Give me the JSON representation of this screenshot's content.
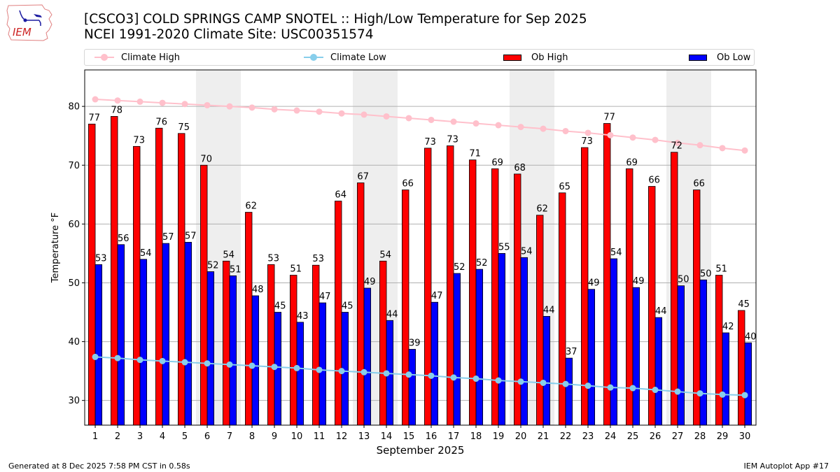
{
  "header": {
    "logo_text": "IEM",
    "title_line1": "[CSCO3] COLD SPRINGS CAMP SNOTEL :: High/Low Temperature for Sep 2025",
    "title_line2": "NCEI 1991-2020 Climate Site: USC00351574"
  },
  "legend": {
    "items": [
      {
        "label": "Climate High",
        "kind": "line",
        "color": "#ffc0cb"
      },
      {
        "label": "Climate Low",
        "kind": "line",
        "color": "#87ceeb"
      },
      {
        "label": "Ob High",
        "kind": "bar",
        "color": "#ff0000"
      },
      {
        "label": "Ob Low",
        "kind": "bar",
        "color": "#0000ff"
      }
    ]
  },
  "footer": {
    "generated": "Generated at 8 Dec 2025 7:58 PM CST in 0.58s",
    "app": "IEM Autoplot App #17"
  },
  "chart_data": {
    "type": "bar",
    "title": "[CSCO3] COLD SPRINGS CAMP SNOTEL :: High/Low Temperature for Sep 2025",
    "subtitle": "NCEI 1991-2020 Climate Site: USC00351574",
    "xlabel": "September 2025",
    "ylabel": "Temperature °F",
    "x": [
      1,
      2,
      3,
      4,
      5,
      6,
      7,
      8,
      9,
      10,
      11,
      12,
      13,
      14,
      15,
      16,
      17,
      18,
      19,
      20,
      21,
      22,
      23,
      24,
      25,
      26,
      27,
      28,
      29,
      30
    ],
    "xlim": [
      0.53,
      30.5
    ],
    "ylim": [
      25.8,
      86.2
    ],
    "yticks": [
      30,
      40,
      50,
      60,
      70,
      80
    ],
    "grid": "y",
    "legend_position": "top",
    "weekend_shading": [
      [
        6,
        7
      ],
      [
        13,
        14
      ],
      [
        20,
        21
      ],
      [
        27,
        28
      ]
    ],
    "shade_color": "#eeeeee",
    "series": [
      {
        "name": "Ob High",
        "kind": "bar",
        "color": "#ff0000",
        "values": [
          77.0,
          78.3,
          73.2,
          76.3,
          75.4,
          70.0,
          53.7,
          62.0,
          53.1,
          51.3,
          53.0,
          63.9,
          67.0,
          53.7,
          65.8,
          72.9,
          73.3,
          70.9,
          69.4,
          68.5,
          61.5,
          65.3,
          73.0,
          77.1,
          69.4,
          66.4,
          72.2,
          65.8,
          51.3,
          45.3
        ],
        "labels": [
          "77",
          "78",
          "73",
          "76",
          "75",
          "70",
          "54",
          "62",
          "53",
          "51",
          "53",
          "64",
          "67",
          "54",
          "66",
          "73",
          "73",
          "71",
          "69",
          "68",
          "62",
          "65",
          "73",
          "77",
          "69",
          "66",
          "72",
          "66",
          "51",
          "45"
        ]
      },
      {
        "name": "Ob Low",
        "kind": "bar",
        "color": "#0000ff",
        "values": [
          53.1,
          56.5,
          54.0,
          56.7,
          56.9,
          51.9,
          51.2,
          47.8,
          45.0,
          43.3,
          46.6,
          45.0,
          49.1,
          43.6,
          38.7,
          46.7,
          51.6,
          52.3,
          55.0,
          54.3,
          44.3,
          37.2,
          48.9,
          54.1,
          49.2,
          44.1,
          49.5,
          50.5,
          41.5,
          39.8
        ],
        "labels": [
          "53",
          "56",
          "54",
          "57",
          "57",
          "52",
          "51",
          "48",
          "45",
          "43",
          "47",
          "45",
          "49",
          "44",
          "39",
          "47",
          "52",
          "52",
          "55",
          "54",
          "44",
          "37",
          "49",
          "54",
          "49",
          "44",
          "50",
          "50",
          "42",
          "40"
        ]
      },
      {
        "name": "Climate High",
        "kind": "line",
        "color": "#ffc0cb",
        "values": [
          81.2,
          81.0,
          80.8,
          80.6,
          80.4,
          80.2,
          80.0,
          79.8,
          79.5,
          79.3,
          79.1,
          78.8,
          78.6,
          78.3,
          78.0,
          77.7,
          77.4,
          77.1,
          76.8,
          76.5,
          76.2,
          75.8,
          75.5,
          75.1,
          74.7,
          74.3,
          73.8,
          73.4,
          72.9,
          72.5
        ]
      },
      {
        "name": "Climate Low",
        "kind": "line",
        "color": "#87ceeb",
        "values": [
          37.4,
          37.2,
          36.9,
          36.7,
          36.5,
          36.3,
          36.1,
          35.9,
          35.7,
          35.5,
          35.2,
          35.0,
          34.8,
          34.6,
          34.4,
          34.2,
          33.9,
          33.7,
          33.4,
          33.2,
          33.0,
          32.8,
          32.5,
          32.2,
          32.1,
          31.8,
          31.5,
          31.2,
          31.0,
          30.9
        ]
      }
    ]
  }
}
